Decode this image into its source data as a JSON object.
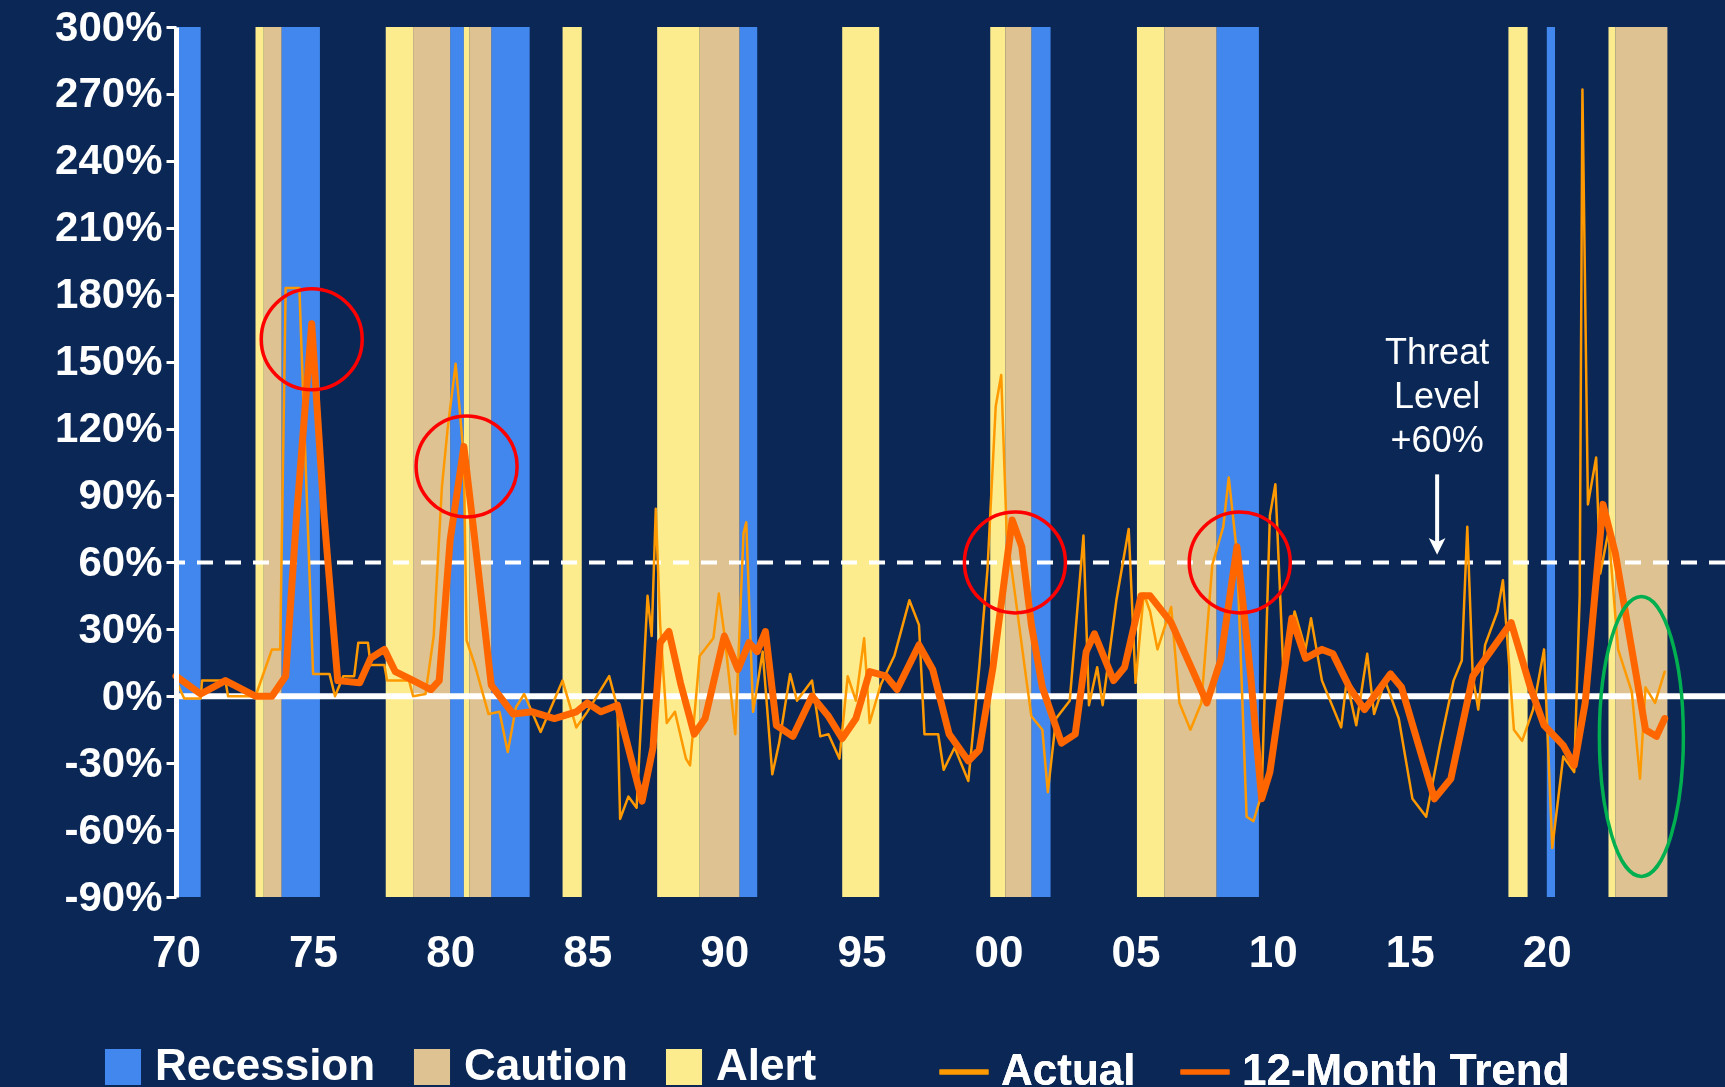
{
  "chart_data": {
    "type": "line",
    "xlim": [
      1970,
      2026.5
    ],
    "xticks": [
      {
        "value": 1970,
        "label": "70"
      },
      {
        "value": 1975,
        "label": "75"
      },
      {
        "value": 1980,
        "label": "80"
      },
      {
        "value": 1985,
        "label": "85"
      },
      {
        "value": 1990,
        "label": "90"
      },
      {
        "value": 1995,
        "label": "95"
      },
      {
        "value": 2000,
        "label": "00"
      },
      {
        "value": 2005,
        "label": "05"
      },
      {
        "value": 2010,
        "label": "10"
      },
      {
        "value": 2015,
        "label": "15"
      },
      {
        "value": 2020,
        "label": "20"
      }
    ],
    "ylim": [
      -90,
      300
    ],
    "yticks": [
      {
        "value": -90,
        "label": "-90%"
      },
      {
        "value": -60,
        "label": "-60%"
      },
      {
        "value": -30,
        "label": "-30%"
      },
      {
        "value": 0,
        "label": "0%"
      },
      {
        "value": 30,
        "label": "30%"
      },
      {
        "value": 60,
        "label": "60%"
      },
      {
        "value": 90,
        "label": "90%"
      },
      {
        "value": 120,
        "label": "120%"
      },
      {
        "value": 150,
        "label": "150%"
      },
      {
        "value": 180,
        "label": "180%"
      },
      {
        "value": 210,
        "label": "210%"
      },
      {
        "value": 240,
        "label": "240%"
      },
      {
        "value": 270,
        "label": "270%"
      },
      {
        "value": 300,
        "label": "300%"
      }
    ],
    "legend": "bottom",
    "bands": [
      {
        "axis": "x",
        "from": 1970.0,
        "to": 1970.9,
        "label": "Recession",
        "color": "#4287ed"
      },
      {
        "axis": "x",
        "from": 1973.85,
        "to": 1975.25,
        "color": "#4287ed"
      },
      {
        "axis": "x",
        "from": 1980.0,
        "to": 1980.5,
        "color": "#4287ed"
      },
      {
        "axis": "x",
        "from": 1981.5,
        "to": 1982.9,
        "color": "#4287ed"
      },
      {
        "axis": "x",
        "from": 1990.55,
        "to": 1991.2,
        "color": "#4287ed"
      },
      {
        "axis": "x",
        "from": 2001.2,
        "to": 2001.9,
        "color": "#4287ed"
      },
      {
        "axis": "x",
        "from": 2007.95,
        "to": 2009.5,
        "color": "#4287ed"
      },
      {
        "axis": "x",
        "from": 2020.0,
        "to": 2020.3,
        "color": "#4287ed"
      },
      {
        "axis": "x",
        "from": 1973.2,
        "to": 1973.85,
        "label": "Caution",
        "color": "#dfc291"
      },
      {
        "axis": "x",
        "from": 1978.65,
        "to": 1980.0,
        "color": "#dfc291"
      },
      {
        "axis": "x",
        "from": 1980.7,
        "to": 1981.5,
        "color": "#dfc291"
      },
      {
        "axis": "x",
        "from": 1989.1,
        "to": 1990.55,
        "color": "#dfc291"
      },
      {
        "axis": "x",
        "from": 2000.25,
        "to": 2001.2,
        "color": "#dfc291"
      },
      {
        "axis": "x",
        "from": 2006.05,
        "to": 2007.95,
        "color": "#dfc291"
      },
      {
        "axis": "x",
        "from": 2022.5,
        "to": 2024.4,
        "color": "#dfc291"
      },
      {
        "axis": "x",
        "from": 1972.9,
        "to": 1973.2,
        "label": "Alert",
        "color": "#fdec8e"
      },
      {
        "axis": "x",
        "from": 1977.65,
        "to": 1978.65,
        "color": "#fdec8e"
      },
      {
        "axis": "x",
        "from": 1980.5,
        "to": 1980.7,
        "color": "#fdec8e"
      },
      {
        "axis": "x",
        "from": 1984.1,
        "to": 1984.8,
        "color": "#fdec8e"
      },
      {
        "axis": "x",
        "from": 1987.55,
        "to": 1989.1,
        "color": "#fdec8e"
      },
      {
        "axis": "x",
        "from": 1994.3,
        "to": 1995.65,
        "color": "#fdec8e"
      },
      {
        "axis": "x",
        "from": 1999.7,
        "to": 2000.25,
        "color": "#fdec8e"
      },
      {
        "axis": "x",
        "from": 2005.05,
        "to": 2006.05,
        "color": "#fdec8e"
      },
      {
        "axis": "x",
        "from": 2018.6,
        "to": 2019.3,
        "color": "#fdec8e"
      },
      {
        "axis": "x",
        "from": 2022.25,
        "to": 2022.5,
        "color": "#fdec8e"
      }
    ],
    "ref_lines": [
      {
        "axis": "y",
        "value": 0,
        "color": "#ffffff",
        "line_style": "solid"
      },
      {
        "axis": "y",
        "value": 60,
        "color": "#ffffff",
        "line_style": "dashed"
      }
    ],
    "annotations": [
      {
        "text": "Threat Level +60%",
        "x": 2016,
        "y": 60
      }
    ],
    "series": [
      {
        "name": "Actual",
        "color": "#ff9900",
        "x": [
          1970.0,
          1970.3,
          1970.9,
          1970.95,
          1971.8,
          1971.9,
          1972.9,
          1973.5,
          1973.8,
          1974.0,
          1974.5,
          1975.0,
          1975.6,
          1975.8,
          1976.1,
          1976.5,
          1976.65,
          1977.0,
          1977.1,
          1977.6,
          1977.7,
          1978.5,
          1978.65,
          1979.1,
          1979.4,
          1979.7,
          1979.9,
          1980.2,
          1980.5,
          1980.6,
          1980.9,
          1981.4,
          1981.8,
          1982.1,
          1982.4,
          1982.7,
          1983.3,
          1984.1,
          1984.6,
          1985.0,
          1985.8,
          1986.1,
          1986.2,
          1986.5,
          1986.8,
          1987.2,
          1987.35,
          1987.5,
          1987.66,
          1987.9,
          1988.2,
          1988.6,
          1988.75,
          1989.1,
          1989.6,
          1989.8,
          1990.0,
          1990.4,
          1990.7,
          1990.8,
          1991.05,
          1991.4,
          1991.75,
          1992.0,
          1992.4,
          1992.65,
          1993.2,
          1993.5,
          1993.8,
          1994.2,
          1994.5,
          1994.8,
          1995.1,
          1995.3,
          1995.7,
          1996.2,
          1996.75,
          1997.1,
          1997.3,
          1997.8,
          1998.0,
          1998.4,
          1998.9,
          1999.3,
          1999.6,
          1999.9,
          2000.1,
          2000.3,
          2000.6,
          2001.0,
          2001.2,
          2001.6,
          2001.8,
          2002.1,
          2002.6,
          2002.85,
          2003.1,
          2003.3,
          2003.6,
          2003.8,
          2004.3,
          2004.75,
          2005.0,
          2005.3,
          2005.53,
          2005.8,
          2006.3,
          2006.6,
          2007.0,
          2007.4,
          2007.8,
          2008.2,
          2008.4,
          2008.7,
          2009.05,
          2009.3,
          2009.6,
          2009.9,
          2010.1,
          2010.4,
          2010.8,
          2011.2,
          2011.4,
          2011.8,
          2012.5,
          2012.7,
          2013.05,
          2013.45,
          2013.7,
          2014.1,
          2014.6,
          2015.1,
          2015.6,
          2016.1,
          2016.6,
          2016.9,
          2017.1,
          2017.3,
          2017.5,
          2017.75,
          2018.2,
          2018.4,
          2018.8,
          2019.1,
          2019.5,
          2019.9,
          2020.2,
          2020.6,
          2021.0,
          2021.2,
          2021.3,
          2021.5,
          2021.8,
          2021.95,
          2022.25,
          2022.6,
          2023.1,
          2023.4,
          2023.6,
          2023.95,
          2024.3
        ],
        "values": [
          7,
          -1,
          -1,
          7,
          7,
          0,
          0,
          21,
          21,
          183,
          183,
          10,
          10,
          0,
          9,
          9,
          24,
          24,
          14,
          14,
          7,
          7,
          0,
          1,
          27,
          94,
          119,
          149,
          107,
          25,
          14,
          -8,
          -7,
          -25,
          -5,
          1,
          -16,
          7,
          -14,
          -7,
          9,
          -5,
          -55,
          -45,
          -50,
          45,
          27,
          84,
          32,
          -12,
          -7,
          -28,
          -31,
          18,
          26,
          46,
          28,
          -17,
          73,
          78,
          -7,
          20,
          -35,
          -21,
          10,
          -2,
          7,
          -18,
          -17,
          -28,
          9,
          -2,
          26,
          -12,
          5,
          18,
          43,
          32,
          -17,
          -17,
          -33,
          -23,
          -38,
          13,
          57,
          130,
          144,
          73,
          46,
          9,
          -9,
          -15,
          -43,
          -10,
          -2,
          35,
          72,
          -4,
          13,
          -4,
          43,
          75,
          6,
          46,
          38,
          21,
          40,
          -3,
          -15,
          -3,
          59,
          76,
          98,
          64,
          -54,
          -56,
          -44,
          81,
          95,
          9,
          38,
          21,
          35,
          7,
          -14,
          7,
          -13,
          19,
          -8,
          7,
          -10,
          -46,
          -54,
          -22,
          7,
          16,
          76,
          9,
          -6,
          23,
          38,
          52,
          -15,
          -20,
          -6,
          21,
          -68,
          -27,
          -34,
          45,
          272,
          86,
          107,
          55,
          74,
          21,
          2,
          -37,
          4,
          -3,
          11
        ]
      },
      {
        "name": "12-Month Trend",
        "color": "#ff6600",
        "x": [
          1970.0,
          1970.9,
          1971.8,
          1972.9,
          1973.5,
          1974.0,
          1974.4,
          1974.95,
          1975.4,
          1975.9,
          1976.7,
          1977.1,
          1977.6,
          1978.0,
          1978.5,
          1979.3,
          1979.6,
          1980.0,
          1980.5,
          1980.9,
          1981.5,
          1982.3,
          1983.0,
          1983.8,
          1984.6,
          1985.0,
          1985.5,
          1986.1,
          1987.0,
          1987.4,
          1987.66,
          1987.98,
          1988.4,
          1988.9,
          1989.3,
          1990.0,
          1990.5,
          1990.9,
          1991.2,
          1991.5,
          1991.9,
          1992.5,
          1993.2,
          1993.8,
          1994.3,
          1994.8,
          1995.3,
          1995.9,
          1996.3,
          1997.1,
          1997.6,
          1998.2,
          1998.9,
          1999.3,
          1999.8,
          2000.5,
          2000.85,
          2001.2,
          2001.6,
          2002.3,
          2002.8,
          2003.2,
          2003.5,
          2004.2,
          2004.6,
          2005.2,
          2005.53,
          2006.3,
          2007.1,
          2007.6,
          2008.1,
          2008.7,
          2009.2,
          2009.6,
          2009.9,
          2010.7,
          2011.2,
          2011.8,
          2012.2,
          2012.8,
          2013.35,
          2014.3,
          2014.7,
          2015.9,
          2016.5,
          2017.3,
          2018.0,
          2018.7,
          2019.4,
          2019.9,
          2020.6,
          2021.0,
          2021.4,
          2022.05,
          2022.5,
          2023.1,
          2023.6,
          2024.0,
          2024.3
        ],
        "values": [
          9,
          1,
          7,
          0,
          0,
          9,
          81,
          167,
          81,
          7,
          6,
          17,
          21,
          11,
          8,
          3,
          7,
          70,
          112,
          70,
          5,
          -8,
          -7,
          -10,
          -7,
          -3,
          -7,
          -4,
          -47,
          -23,
          24,
          29,
          6,
          -17,
          -10,
          27,
          12,
          24,
          20,
          29,
          -13,
          -18,
          0,
          -9,
          -19,
          -10,
          11,
          9,
          3,
          23,
          12,
          -17,
          -29,
          -24,
          13,
          79,
          67,
          32,
          4,
          -21,
          -17,
          20,
          28,
          7,
          13,
          45,
          45,
          33,
          11,
          -3,
          16,
          67,
          9,
          -46,
          -34,
          35,
          17,
          21,
          19,
          4,
          -6,
          10,
          4,
          -46,
          -37,
          9,
          21,
          33,
          4,
          -13,
          -22,
          -31,
          -3,
          86,
          64,
          21,
          -15,
          -18,
          -10
        ]
      }
    ]
  }
}
